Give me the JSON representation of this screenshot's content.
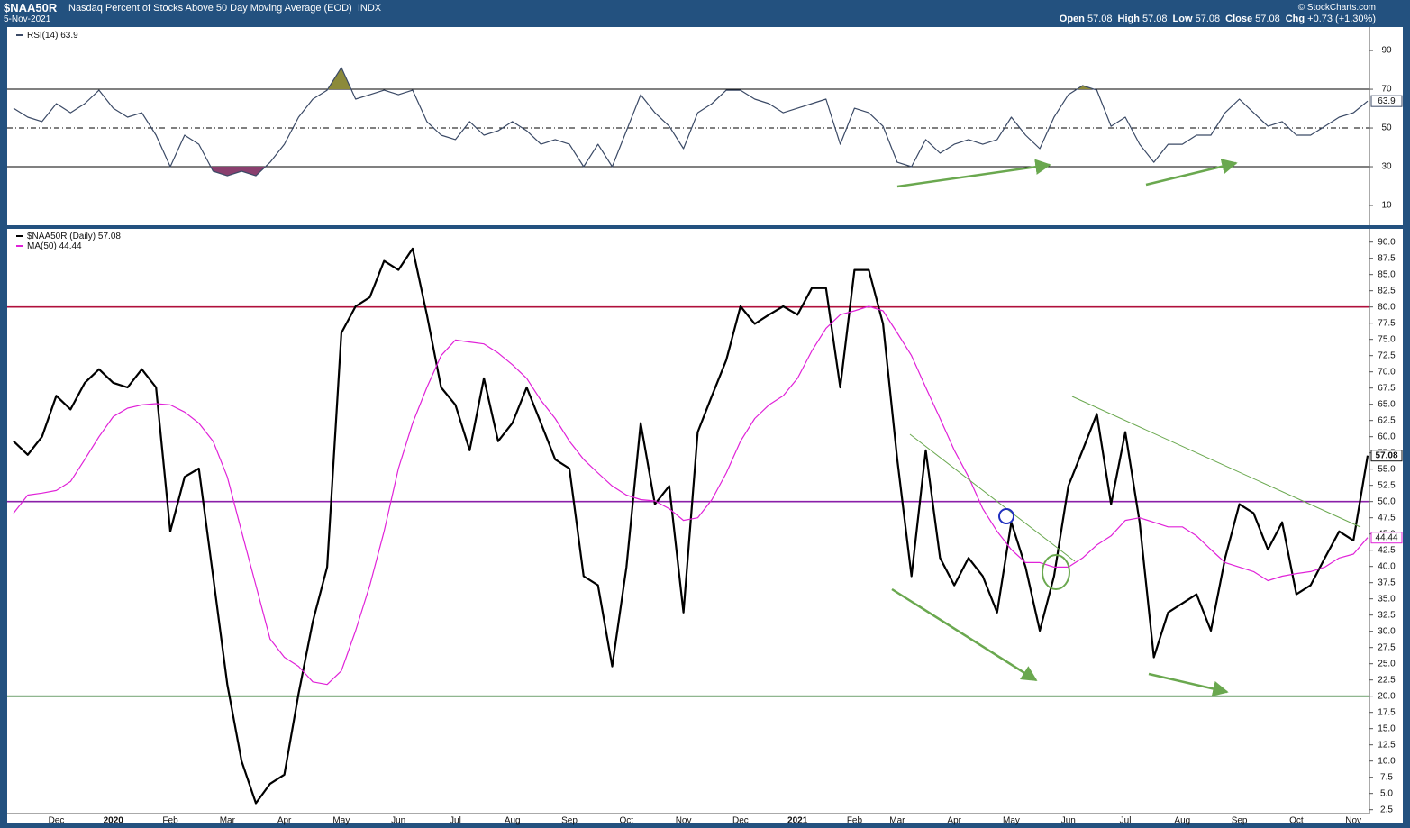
{
  "header": {
    "symbol": "$NAA50R",
    "title": "Nasdaq Percent of Stocks Above 50 Day Moving Average (EOD)",
    "exchange": "INDX",
    "date": "5-Nov-2021",
    "copyright": "© StockCharts.com",
    "quote": [
      {
        "label": "Open",
        "value": 57.08
      },
      {
        "label": "High",
        "value": 57.08
      },
      {
        "label": "Low",
        "value": 57.08
      },
      {
        "label": "Close",
        "value": 57.08
      },
      {
        "label": "Chg",
        "value": "+0.73 (+1.30%)"
      }
    ]
  },
  "chart_data": [
    {
      "type": "line",
      "ylim": [
        0.7,
        101.2
      ],
      "yticks": [
        10,
        30,
        50,
        70,
        90
      ],
      "reference_lines": [
        {
          "value": 70,
          "color": "#000000",
          "dash": false
        },
        {
          "value": 50,
          "color": "#000000",
          "dash": true
        },
        {
          "value": 30,
          "color": "#000000",
          "dash": false
        }
      ],
      "fill_above": {
        "value": 70,
        "color": "#8c8a3a"
      },
      "fill_below": {
        "value": 30,
        "color": "#8a3f6e"
      },
      "series": [
        {
          "name": "RSI(14)",
          "color": "#3b4a66",
          "values": [
            60.2,
            55.6,
            53.3,
            62.6,
            57.9,
            62.6,
            69.5,
            60.2,
            55.6,
            57.9,
            46.3,
            30.0,
            46.3,
            41.6,
            27.7,
            25.3,
            27.7,
            25.3,
            32.3,
            41.6,
            55.6,
            64.9,
            69.5,
            81.2,
            64.9,
            67.2,
            69.5,
            67.2,
            69.5,
            53.3,
            46.3,
            44.0,
            53.3,
            46.3,
            48.6,
            53.3,
            48.6,
            41.6,
            44.0,
            41.6,
            30.0,
            41.6,
            30.0,
            48.6,
            67.2,
            57.9,
            50.9,
            39.3,
            57.9,
            62.6,
            69.5,
            69.5,
            64.9,
            62.6,
            57.9,
            60.2,
            62.6,
            64.9,
            41.6,
            60.2,
            57.9,
            50.9,
            32.3,
            30.0,
            44.0,
            37.0,
            41.6,
            44.0,
            41.6,
            44.0,
            55.6,
            46.3,
            39.3,
            55.6,
            67.2,
            71.9,
            69.5,
            50.9,
            55.6,
            41.6,
            32.3,
            41.6,
            41.6,
            46.3,
            46.3,
            57.9,
            64.9,
            57.9,
            50.9,
            53.3,
            46.3,
            46.3,
            50.9,
            55.6,
            57.9,
            63.9
          ]
        }
      ]
    },
    {
      "type": "line",
      "ylim": [
        1.9,
        91.9
      ],
      "yticks": [
        2.5,
        {
          "value": 5,
          "label": "5.0"
        },
        7.5,
        {
          "value": 10,
          "label": "10.0"
        },
        12.5,
        {
          "value": 15,
          "label": "15.0"
        },
        17.5,
        {
          "value": 20,
          "label": "20.0"
        },
        22.5,
        {
          "value": 25,
          "label": "25.0"
        },
        27.5,
        {
          "value": 30,
          "label": "30.0"
        },
        32.5,
        {
          "value": 35,
          "label": "35.0"
        },
        37.5,
        {
          "value": 40,
          "label": "40.0"
        },
        42.5,
        {
          "value": 45,
          "label": "45.0"
        },
        47.5,
        {
          "value": 50,
          "label": "50.0"
        },
        52.5,
        {
          "value": 55,
          "label": "55.0"
        },
        57.5,
        {
          "value": 60,
          "label": "60.0"
        },
        62.5,
        {
          "value": 65,
          "label": "65.0"
        },
        67.5,
        {
          "value": 70,
          "label": "70.0"
        },
        72.5,
        {
          "value": 75,
          "label": "75.0"
        },
        77.5,
        {
          "value": 80,
          "label": "80.0"
        },
        82.5,
        {
          "value": 85,
          "label": "85.0"
        },
        87.5,
        {
          "value": 90,
          "label": "90.0"
        }
      ],
      "reference_lines": [
        {
          "value": 80,
          "color": "#b0103c",
          "dash": false
        },
        {
          "value": 50,
          "color": "#8a1fa8",
          "dash": false
        },
        {
          "value": 20,
          "color": "#1f6e1f",
          "dash": false
        }
      ],
      "categories": [
        null,
        null,
        null,
        "Dec",
        null,
        null,
        null,
        "2020",
        null,
        null,
        null,
        "Feb",
        null,
        null,
        null,
        "Mar",
        null,
        null,
        null,
        "Apr",
        null,
        null,
        null,
        "May",
        null,
        null,
        null,
        "Jun",
        null,
        null,
        null,
        "Jul",
        null,
        null,
        null,
        "Aug",
        null,
        null,
        null,
        "Sep",
        null,
        null,
        null,
        "Oct",
        null,
        null,
        null,
        "Nov",
        null,
        null,
        null,
        "Dec",
        null,
        null,
        null,
        "2021",
        null,
        null,
        null,
        "Feb",
        null,
        null,
        "Mar",
        null,
        null,
        null,
        "Apr",
        null,
        null,
        null,
        "May",
        null,
        null,
        null,
        "Jun",
        null,
        null,
        null,
        "Jul",
        null,
        null,
        null,
        "Aug",
        null,
        null,
        null,
        "Sep",
        null,
        null,
        null,
        "Oct",
        null,
        null,
        null,
        "Nov",
        null
      ],
      "series": [
        {
          "name": "$NAA50R (Daily)",
          "color": "#000000",
          "values": [
            59.3,
            57.2,
            60.0,
            66.3,
            64.2,
            68.3,
            70.4,
            68.3,
            67.6,
            70.4,
            67.6,
            45.4,
            53.8,
            55.1,
            38.5,
            21.8,
            10.0,
            3.5,
            6.5,
            7.9,
            20.4,
            31.5,
            39.9,
            76.0,
            80.1,
            81.5,
            87.1,
            85.7,
            89.0,
            78.8,
            67.6,
            64.9,
            57.9,
            69.0,
            59.3,
            62.1,
            67.6,
            62.1,
            56.5,
            55.1,
            38.5,
            37.1,
            24.6,
            39.9,
            62.1,
            49.6,
            52.4,
            32.9,
            60.7,
            66.3,
            71.8,
            80.1,
            77.4,
            78.8,
            80.1,
            78.8,
            82.9,
            82.9,
            67.6,
            85.7,
            85.7,
            77.4,
            56.5,
            38.5,
            57.9,
            41.3,
            37.1,
            41.3,
            38.5,
            32.9,
            46.8,
            39.9,
            30.1,
            38.5,
            52.4,
            57.9,
            63.5,
            49.6,
            60.7,
            46.8,
            26.0,
            32.9,
            34.3,
            35.7,
            30.1,
            41.3,
            49.6,
            48.2,
            42.6,
            46.8,
            35.7,
            37.1,
            41.3,
            45.4,
            44.0,
            57.08
          ]
        },
        {
          "name": "MA(50)",
          "color": "#e022d8",
          "values": [
            48.2,
            51.0,
            51.3,
            51.7,
            53.1,
            56.5,
            60.0,
            63.1,
            64.4,
            64.9,
            65.1,
            64.9,
            63.8,
            62.1,
            59.3,
            53.8,
            45.4,
            37.1,
            28.8,
            26.0,
            24.6,
            22.2,
            21.8,
            23.9,
            30.1,
            37.1,
            45.4,
            55.1,
            62.1,
            67.6,
            72.5,
            74.9,
            74.6,
            74.3,
            72.9,
            71.1,
            69.0,
            65.6,
            62.8,
            59.3,
            56.5,
            54.4,
            52.4,
            51.0,
            50.3,
            50.1,
            48.9,
            47.1,
            47.5,
            50.3,
            54.4,
            59.3,
            62.8,
            64.9,
            66.3,
            69.0,
            73.2,
            76.7,
            78.8,
            79.4,
            80.1,
            79.4,
            76.0,
            72.5,
            67.6,
            62.8,
            57.9,
            53.8,
            48.9,
            45.4,
            42.6,
            40.6,
            40.6,
            39.9,
            39.9,
            41.3,
            43.3,
            44.7,
            47.1,
            47.5,
            46.8,
            46.1,
            46.1,
            44.7,
            42.6,
            40.6,
            39.9,
            39.2,
            37.8,
            38.5,
            38.9,
            39.2,
            39.9,
            41.3,
            41.9,
            44.44
          ]
        }
      ]
    }
  ]
}
